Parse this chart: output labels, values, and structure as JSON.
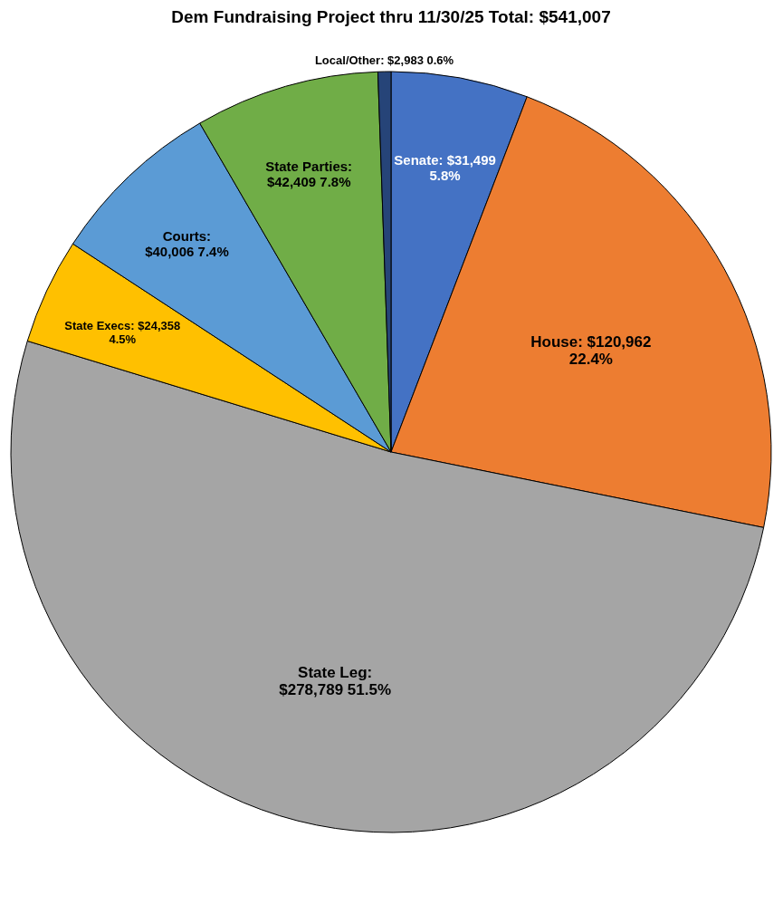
{
  "chart_data": {
    "type": "pie",
    "title": "Dem Fundraising Project thru 11/30/25 Total: $541,007",
    "categories": [
      "Senate",
      "House",
      "State Leg",
      "State Execs",
      "Courts",
      "State Parties",
      "Local/Other"
    ],
    "values": [
      31499,
      120962,
      278789,
      24358,
      40006,
      42409,
      2983
    ],
    "value_labels": [
      ": $31,499\n5.8%",
      ": $120,962\n22.4%",
      ":\n$278,789 51.5%",
      ": $24,358\n4.5%",
      ":\n$40,006 7.4%",
      ":\n$42,409 7.8%",
      ": $2,983 0.6%"
    ],
    "colors": [
      "#4472c4",
      "#ed7d31",
      "#a5a5a5",
      "#ffc000",
      "#5b9bd5",
      "#70ad47",
      "#264478"
    ],
    "legend": false
  }
}
